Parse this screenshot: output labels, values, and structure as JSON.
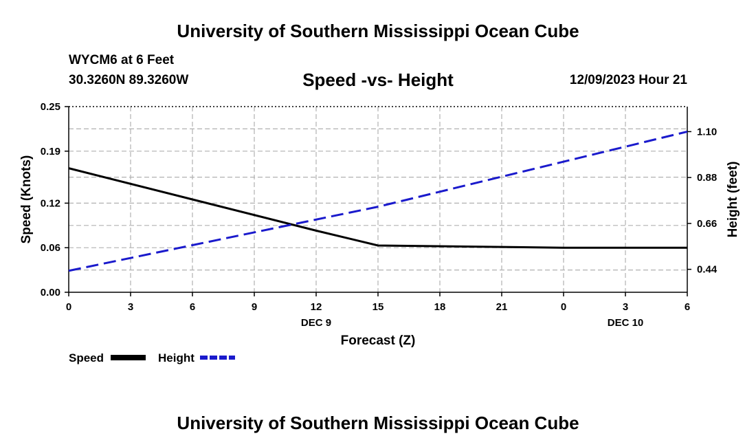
{
  "header": {
    "title": "University of Southern Mississippi Ocean Cube",
    "station": "WYCM6 at 6 Feet",
    "coordinates": "30.3260N  89.3260W",
    "chart_title": "Speed -vs- Height",
    "datetime": "12/09/2023 Hour 21"
  },
  "footer": {
    "title": "University of Southern Mississippi Ocean Cube"
  },
  "colors": {
    "speed": "#000000",
    "height": "#1a1acc",
    "grid": "#b0b0b0"
  },
  "chart_data": {
    "type": "line",
    "title": "Speed -vs- Height",
    "xlabel": "Forecast (Z)",
    "ylabel": "Speed (Knots)",
    "y2label": "Height (feet)",
    "x_hours": [
      0,
      3,
      6,
      9,
      12,
      15,
      18,
      21,
      24,
      27,
      30
    ],
    "x_tick_labels": [
      "0",
      "3",
      "6",
      "9",
      "12",
      "15",
      "18",
      "21",
      "0",
      "3",
      "6"
    ],
    "date_labels": [
      {
        "hour": 12,
        "label": "DEC 9"
      },
      {
        "hour": 27,
        "label": "DEC 10"
      }
    ],
    "xlim": [
      0,
      30
    ],
    "ylim": [
      0,
      0.25
    ],
    "yticks": [
      0,
      0.06,
      0.12,
      0.19,
      0.25
    ],
    "ytick_labels": [
      "0.00",
      "0.06",
      "0.12",
      "0.19",
      "0.25"
    ],
    "y2lim": [
      0.33,
      1.22
    ],
    "y2ticks": [
      0.44,
      0.66,
      0.88,
      1.1
    ],
    "y2tick_labels": [
      "0.44",
      "0.66",
      "0.88",
      "1.10"
    ],
    "grid": true,
    "series": [
      {
        "name": "Speed",
        "axis": "left",
        "style": "solid",
        "x": [
          0,
          6,
          12,
          15,
          21,
          24,
          30
        ],
        "y": [
          0.167,
          0.125,
          0.083,
          0.063,
          0.061,
          0.06,
          0.06
        ]
      },
      {
        "name": "Height",
        "axis": "right",
        "style": "dashed",
        "x": [
          0,
          15,
          30
        ],
        "y": [
          0.433,
          0.74,
          1.1
        ]
      }
    ],
    "legend": [
      {
        "label": "Speed",
        "style": "solid"
      },
      {
        "label": "Height",
        "style": "dashed"
      }
    ],
    "legend_position": "bottom-left"
  }
}
